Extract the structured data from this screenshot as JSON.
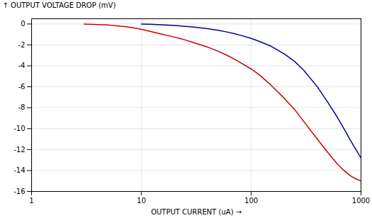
{
  "chart_data": {
    "type": "line",
    "xlabel": "OUTPUT CURRENT (uA)",
    "ylabel": "OUTPUT VOLTAGE DROP (mV)",
    "log": "x",
    "xlim": [
      1,
      1000
    ],
    "ylim": [
      -16,
      0.5
    ],
    "xticks": [
      1,
      10,
      100,
      1000
    ],
    "yticks": [
      0,
      -2,
      -4,
      -6,
      -8,
      -10,
      -12,
      -14,
      -16
    ],
    "grid": true,
    "series": [
      {
        "color": "#cc0000",
        "x": [
          3.0,
          4.0,
          5.0,
          6.0,
          7.0,
          8.0,
          9.0,
          10.0,
          12.0,
          15.0,
          20.0,
          25.0,
          30.0,
          40.0,
          50.0,
          60.0,
          70.0,
          80.0,
          100.0,
          120.0,
          150.0,
          200.0,
          250.0,
          300.0,
          400.0,
          500.0,
          600.0,
          700.0,
          800.0,
          900.0,
          1000.0
        ],
        "values": [
          0.0,
          -0.05,
          -0.1,
          -0.18,
          -0.25,
          -0.33,
          -0.42,
          -0.52,
          -0.7,
          -0.95,
          -1.25,
          -1.52,
          -1.78,
          -2.2,
          -2.6,
          -2.98,
          -3.35,
          -3.7,
          -4.3,
          -4.9,
          -5.8,
          -7.1,
          -8.2,
          -9.3,
          -11.0,
          -12.3,
          -13.3,
          -14.0,
          -14.5,
          -14.8,
          -15.0
        ]
      },
      {
        "color": "#000099",
        "x": [
          10.0,
          12.0,
          15.0,
          20.0,
          25.0,
          30.0,
          40.0,
          50.0,
          60.0,
          70.0,
          80.0,
          100.0,
          120.0,
          150.0,
          200.0,
          250.0,
          300.0,
          400.0,
          500.0,
          600.0,
          700.0,
          800.0,
          900.0,
          1000.0
        ],
        "values": [
          0.0,
          -0.03,
          -0.07,
          -0.15,
          -0.22,
          -0.3,
          -0.45,
          -0.6,
          -0.76,
          -0.92,
          -1.08,
          -1.38,
          -1.68,
          -2.1,
          -2.85,
          -3.6,
          -4.4,
          -6.0,
          -7.5,
          -8.8,
          -10.0,
          -11.1,
          -12.0,
          -12.8
        ]
      }
    ]
  }
}
